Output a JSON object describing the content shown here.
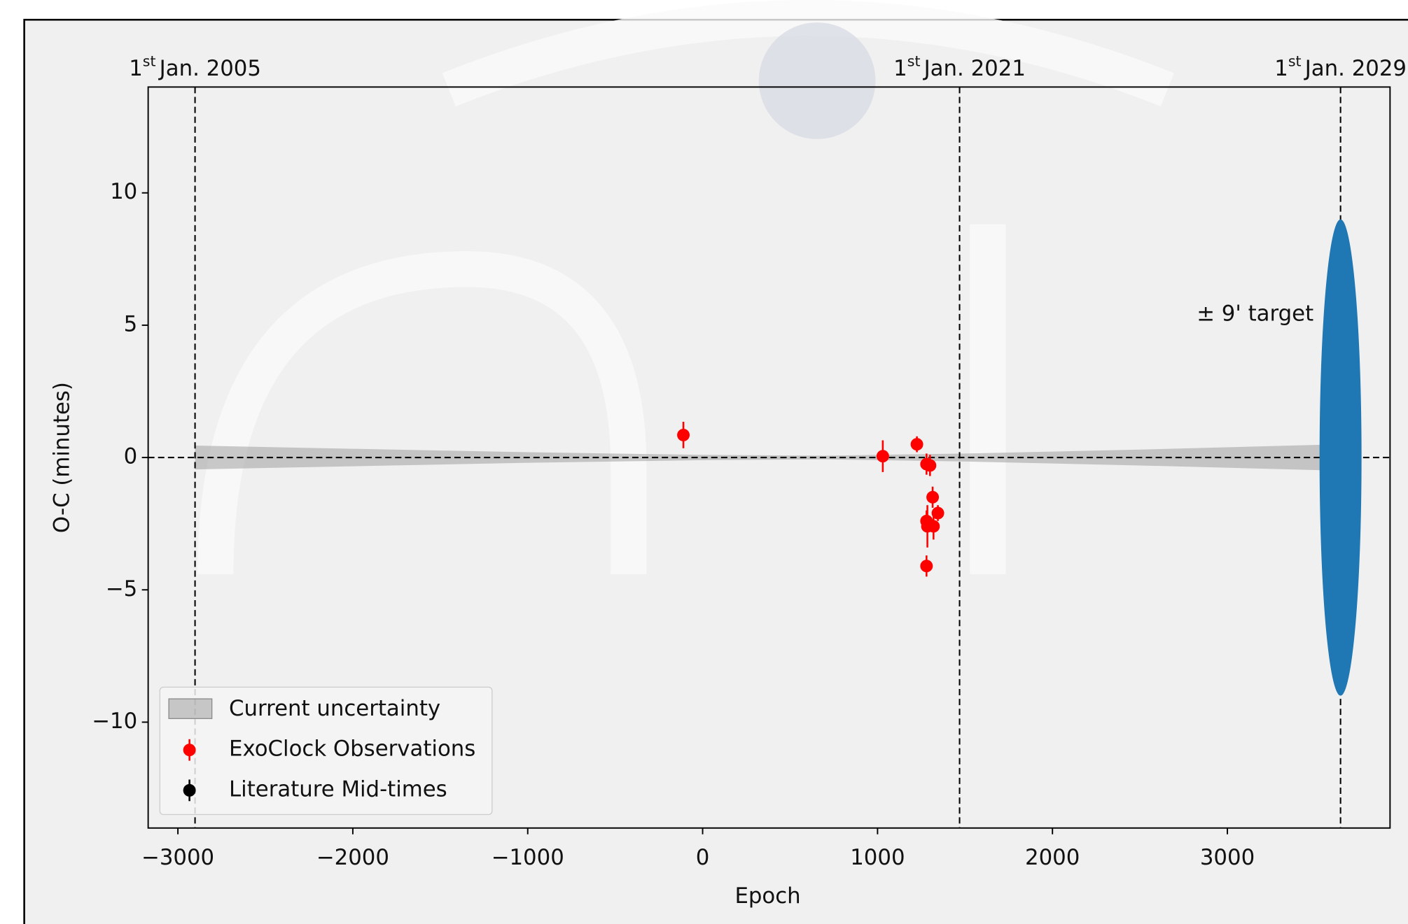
{
  "chart_data": {
    "type": "errorbar",
    "xlabel": "Epoch",
    "ylabel": "O-C (minutes)",
    "xlim": [
      -3170,
      3930
    ],
    "ylim": [
      -14,
      14
    ],
    "xticks": [
      {
        "value": -3000,
        "label": "−3000"
      },
      {
        "value": -2000,
        "label": "−2000"
      },
      {
        "value": -1000,
        "label": "−1000"
      },
      0,
      1000,
      2000,
      3000
    ],
    "yticks": [
      {
        "value": -10,
        "label": "−10"
      },
      {
        "value": -5,
        "label": "−5"
      },
      0,
      5,
      10
    ],
    "date_lines": [
      {
        "x": -2902,
        "day": "1",
        "suffix": "st",
        "date": "Jan. 2005"
      },
      {
        "x": 1469,
        "day": "1",
        "suffix": "st",
        "date": "Jan. 2021"
      },
      {
        "x": 3647,
        "day": "1",
        "suffix": "st",
        "date": "Jan. 2029"
      }
    ],
    "band": {
      "name": "Current uncertainty",
      "color": "#a0a0a0",
      "x": [
        -2902,
        -2000,
        -1000,
        0,
        700,
        1500,
        2500,
        3647
      ],
      "upper": [
        0.45,
        0.33,
        0.2,
        0.1,
        0.07,
        0.15,
        0.3,
        0.5
      ],
      "lower": [
        -0.45,
        -0.33,
        -0.2,
        -0.1,
        -0.07,
        -0.15,
        -0.3,
        -0.5
      ]
    },
    "series": [
      {
        "name": "ExoClock Observations",
        "color": "#ff0000",
        "x": [
          -110,
          1030,
          1225,
          1280,
          1300,
          1315,
          1345,
          1280,
          1285,
          1320,
          1280
        ],
        "values": [
          0.85,
          0.05,
          0.5,
          -0.25,
          -0.3,
          -1.5,
          -2.1,
          -2.4,
          -2.6,
          -2.6,
          -4.1
        ],
        "errors": [
          0.5,
          0.6,
          0.3,
          0.4,
          0.4,
          0.4,
          0.3,
          0.4,
          0.8,
          0.5,
          0.4
        ]
      },
      {
        "name": "Literature Mid-times",
        "color": "#000000",
        "x": [],
        "values": [],
        "errors": []
      }
    ],
    "target": {
      "label": "± 9' target",
      "x": 3647,
      "half_height": 9,
      "half_width": 120,
      "color": "#1f77b4"
    },
    "legend": "lower left"
  }
}
